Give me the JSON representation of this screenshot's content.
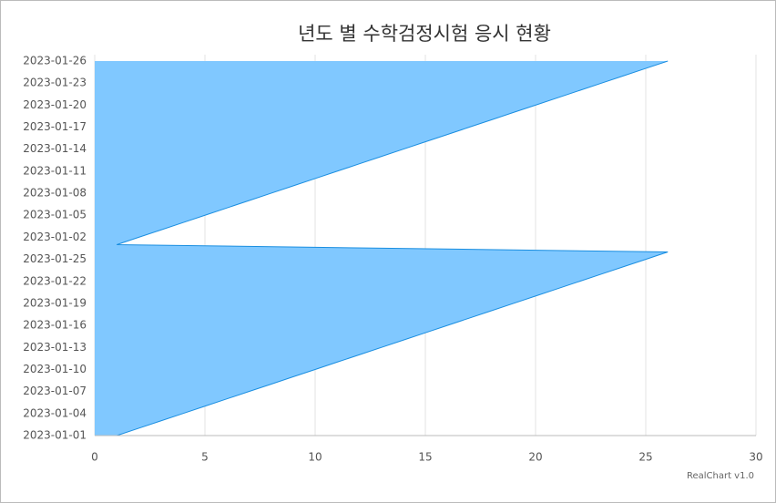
{
  "chart_data": {
    "type": "area",
    "orientation": "horizontal",
    "title": "년도 별 수학검정시험 응시 현황",
    "credits": "RealChart v1.0",
    "categories": [
      "2023-01-01",
      null,
      null,
      "2023-01-04",
      null,
      null,
      "2023-01-07",
      null,
      null,
      "2023-01-10",
      null,
      null,
      "2023-01-13",
      null,
      null,
      "2023-01-16",
      null,
      null,
      "2023-01-19",
      null,
      null,
      "2023-01-22",
      null,
      null,
      "2023-01-25",
      null,
      null,
      "2023-01-02",
      null,
      null,
      "2023-01-05",
      null,
      null,
      "2023-01-08",
      null,
      null,
      "2023-01-11",
      null,
      null,
      "2023-01-14",
      null,
      null,
      "2023-01-17",
      null,
      null,
      "2023-01-20",
      null,
      null,
      "2023-01-23",
      null,
      null,
      "2023-01-26"
    ],
    "values": [
      1,
      2,
      3,
      4,
      5,
      6,
      7,
      8,
      9,
      10,
      11,
      12,
      13,
      14,
      15,
      16,
      17,
      18,
      19,
      20,
      21,
      22,
      23,
      24,
      25,
      26,
      1,
      2,
      3,
      4,
      5,
      6,
      7,
      8,
      9,
      10,
      11,
      12,
      13,
      14,
      15,
      16,
      17,
      18,
      19,
      20,
      21,
      22,
      23,
      24,
      25,
      26
    ],
    "color": "#80c8ff",
    "line_color": "#1a8ee0",
    "xlim": [
      0,
      30
    ],
    "xticks": [
      0,
      5,
      10,
      15,
      20,
      25,
      30
    ],
    "grid": true
  }
}
